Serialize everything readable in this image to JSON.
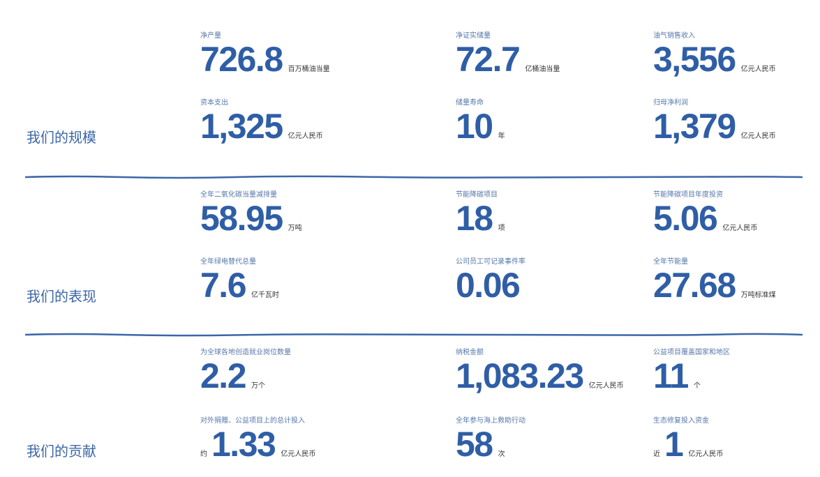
{
  "sections": [
    {
      "title": "我们的规模",
      "items": [
        {
          "label": "净产量",
          "value": "726.8",
          "unit": "百万桶油当量"
        },
        {
          "label": "净证实储量",
          "value": "72.7",
          "unit": "亿桶油当量"
        },
        {
          "label": "油气销售收入",
          "value": "3,556",
          "unit": "亿元人民币"
        },
        {
          "label": "资本支出",
          "value": "1,325",
          "unit": "亿元人民币"
        },
        {
          "label": "储量寿命",
          "value": "10",
          "unit": "年"
        },
        {
          "label": "归母净利润",
          "value": "1,379",
          "unit": "亿元人民币"
        }
      ]
    },
    {
      "title": "我们的表现",
      "items": [
        {
          "label": "全年二氧化碳当量减排量",
          "value": "58.95",
          "unit": "万吨"
        },
        {
          "label": "节能降碳项目",
          "value": "18",
          "unit": "项"
        },
        {
          "label": "节能降碳项目年度投资",
          "value": "5.06",
          "unit": "亿元人民币"
        },
        {
          "label": "全年绿电替代总量",
          "value": "7.6",
          "unit": "亿千瓦时"
        },
        {
          "label": "公司员工可记录事件率",
          "value": "0.06"
        },
        {
          "label": "全年节能量",
          "value": "27.68",
          "unit": "万吨标准煤"
        }
      ]
    },
    {
      "title": "我们的贡献",
      "items": [
        {
          "label": "为全球各地创造就业岗位数量",
          "value": "2.2",
          "unit": "万个"
        },
        {
          "label": "纳税金额",
          "value": "1,083.23",
          "unit": "亿元人民币"
        },
        {
          "label": "公益项目覆盖国家和地区",
          "value": "11",
          "unit": "个"
        },
        {
          "label": "对外捐赠、公益项目上的总计投入",
          "prefix": "约",
          "value": "1.33",
          "unit": "亿元人民币"
        },
        {
          "label": "全年参与海上救助行动",
          "value": "58",
          "unit": "次"
        },
        {
          "label": "生态修复投入资金",
          "prefix": "近",
          "value": "1",
          "unit": "亿元人民币"
        }
      ]
    }
  ]
}
